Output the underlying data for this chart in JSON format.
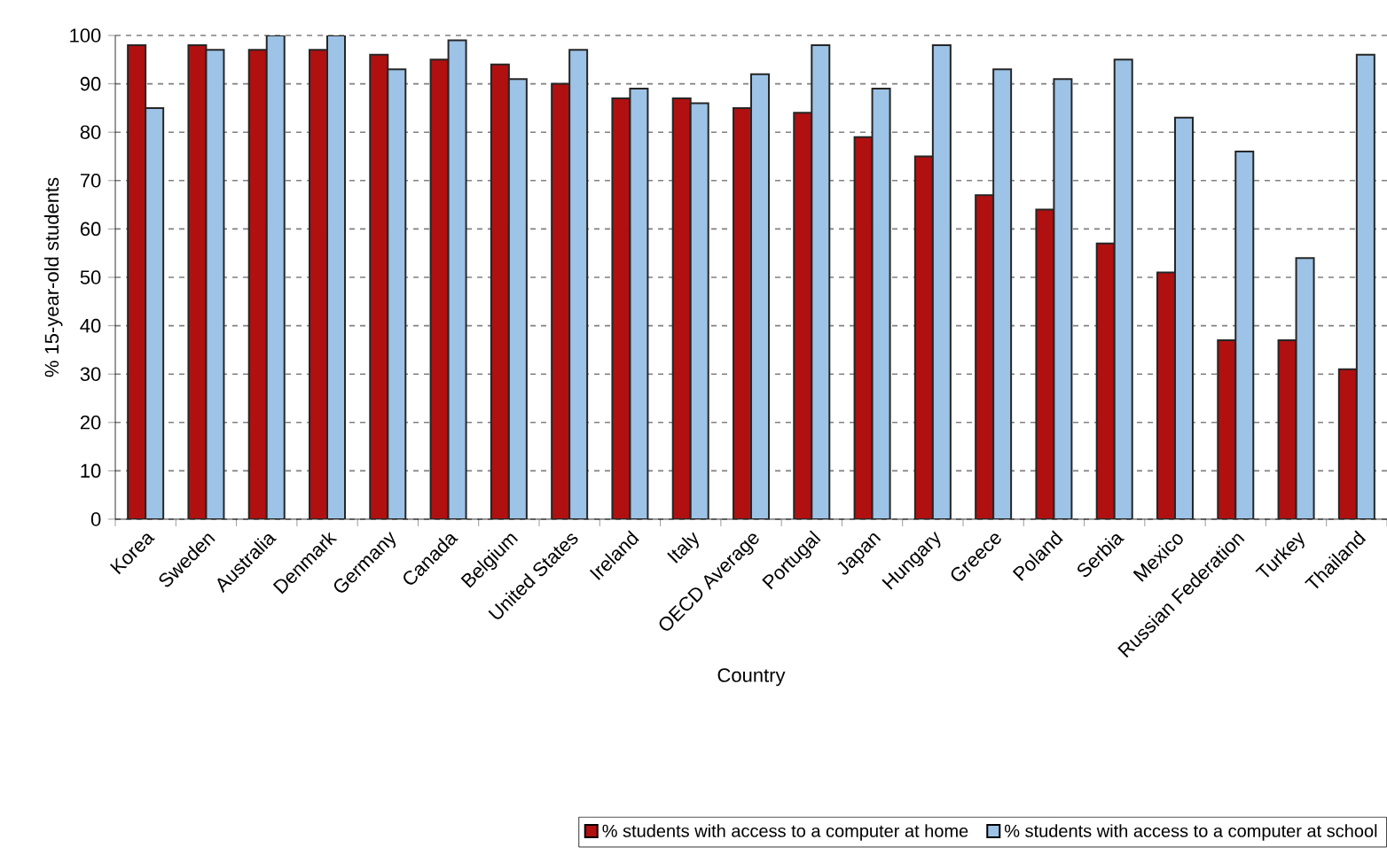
{
  "chart_data": {
    "type": "bar",
    "xlabel": "Country",
    "ylabel": "% 15-year-old students",
    "categories": [
      "Korea",
      "Sweden",
      "Australia",
      "Denmark",
      "Germany",
      "Canada",
      "Belgium",
      "United States",
      "Ireland",
      "Italy",
      "OECD Average",
      "Portugal",
      "Japan",
      "Hungary",
      "Greece",
      "Poland",
      "Serbia",
      "Mexico",
      "Russian Federation",
      "Turkey",
      "Thailand"
    ],
    "series": [
      {
        "name": "% students with access to a computer at home",
        "color": "#b01010",
        "values": [
          98,
          98,
          97,
          97,
          96,
          95,
          94,
          90,
          87,
          87,
          85,
          84,
          79,
          75,
          67,
          64,
          57,
          51,
          37,
          37,
          31
        ]
      },
      {
        "name": "% students with access to a computer at school",
        "color": "#9dc3e6",
        "values": [
          85,
          97,
          100,
          100,
          93,
          99,
          91,
          97,
          89,
          86,
          92,
          98,
          89,
          98,
          93,
          91,
          95,
          83,
          76,
          54,
          96
        ]
      }
    ],
    "ylim": [
      0,
      100
    ],
    "yticks": [
      0,
      10,
      20,
      30,
      40,
      50,
      60,
      70,
      80,
      90,
      100
    ],
    "grid": "y",
    "legend": "bottom"
  }
}
